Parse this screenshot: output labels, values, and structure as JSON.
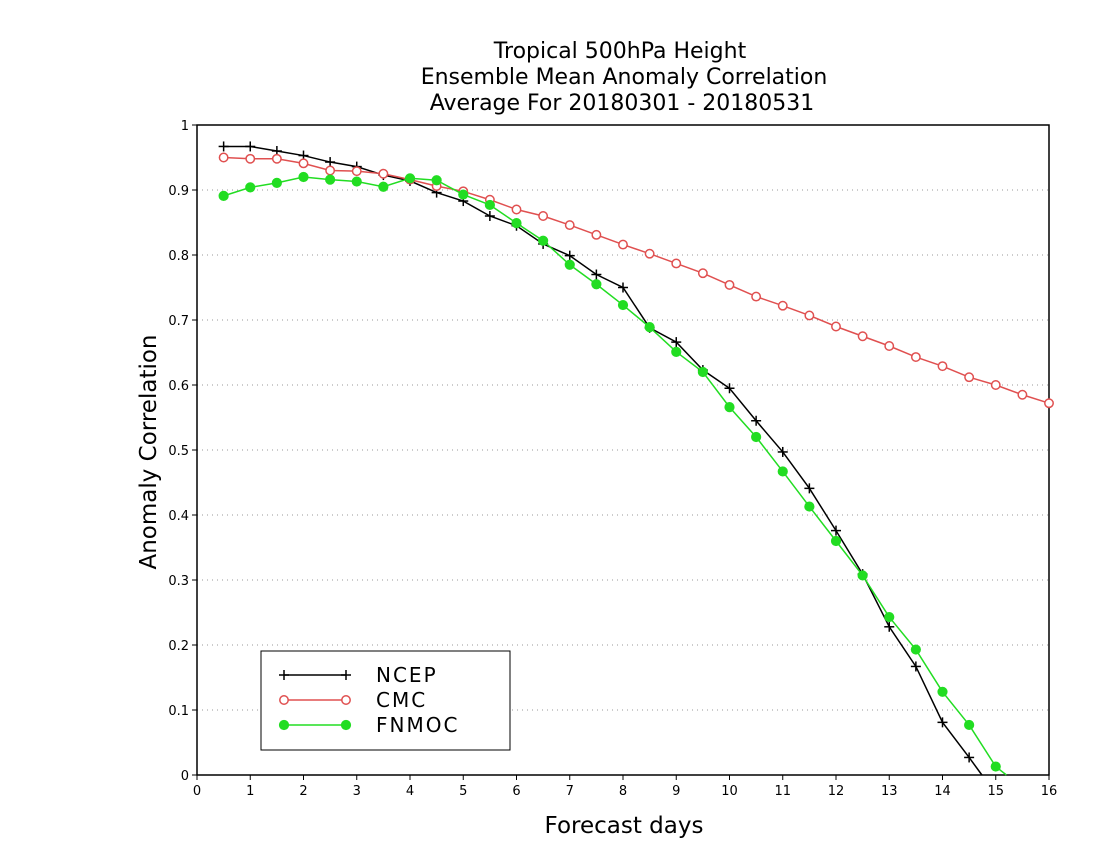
{
  "chart_data": {
    "type": "line",
    "title": [
      "Tropical 500hPa Height",
      "Ensemble Mean Anomaly Correlation",
      "Average For 20180301 - 20180531"
    ],
    "xlabel": "Forecast days",
    "ylabel": "Anomaly Correlation",
    "xlim": [
      0,
      16
    ],
    "ylim": [
      0,
      1
    ],
    "xticks": [
      0,
      1,
      2,
      3,
      4,
      5,
      6,
      7,
      8,
      9,
      10,
      11,
      12,
      13,
      14,
      15,
      16
    ],
    "yticks": [
      0,
      0.1,
      0.2,
      0.3,
      0.4,
      0.5,
      0.6,
      0.7,
      0.8,
      0.9,
      1
    ],
    "ytick_labels": [
      "0",
      "0.1",
      "0.2",
      "0.3",
      "0.4",
      "0.5",
      "0.6",
      "0.7",
      "0.8",
      "0.9",
      "1"
    ],
    "grid": "horizontal dotted",
    "legend_position": "bottom-left",
    "series": [
      {
        "name": "NCEP",
        "color": "#000000",
        "marker": "plus",
        "x": [
          0.5,
          1,
          1.5,
          2,
          2.5,
          3,
          3.5,
          4,
          4.5,
          5,
          5.5,
          6,
          6.5,
          7,
          7.5,
          8,
          8.5,
          9,
          9.5,
          10,
          10.5,
          11,
          11.5,
          12,
          12.5,
          13,
          13.5,
          14,
          14.5
        ],
        "y": [
          0.967,
          0.967,
          0.96,
          0.953,
          0.943,
          0.936,
          0.923,
          0.914,
          0.896,
          0.883,
          0.86,
          0.845,
          0.817,
          0.799,
          0.77,
          0.75,
          0.688,
          0.666,
          0.623,
          0.595,
          0.545,
          0.497,
          0.441,
          0.376,
          0.309,
          0.228,
          0.167,
          0.081,
          0.027
        ],
        "end": [
          14.74,
          0
        ]
      },
      {
        "name": "CMC",
        "color": "#e05050",
        "marker": "open-circle",
        "x": [
          0.5,
          1,
          1.5,
          2,
          2.5,
          3,
          3.5,
          4,
          4.5,
          5,
          5.5,
          6,
          6.5,
          7,
          7.5,
          8,
          8.5,
          9,
          9.5,
          10,
          10.5,
          11,
          11.5,
          12,
          12.5,
          13,
          13.5,
          14,
          14.5,
          15,
          15.5,
          16
        ],
        "y": [
          0.95,
          0.948,
          0.948,
          0.941,
          0.93,
          0.929,
          0.925,
          0.916,
          0.906,
          0.898,
          0.885,
          0.87,
          0.86,
          0.846,
          0.831,
          0.816,
          0.802,
          0.787,
          0.772,
          0.754,
          0.736,
          0.722,
          0.707,
          0.69,
          0.675,
          0.66,
          0.643,
          0.629,
          0.612,
          0.6,
          0.585,
          0.572
        ]
      },
      {
        "name": "FNMOC",
        "color": "#22dd22",
        "marker": "filled-circle",
        "x": [
          0.5,
          1,
          1.5,
          2,
          2.5,
          3,
          3.5,
          4,
          4.5,
          5,
          5.5,
          6,
          6.5,
          7,
          7.5,
          8,
          8.5,
          9,
          9.5,
          10,
          10.5,
          11,
          11.5,
          12,
          12.5,
          13,
          13.5,
          14,
          14.5,
          15
        ],
        "y": [
          0.891,
          0.904,
          0.911,
          0.92,
          0.916,
          0.913,
          0.905,
          0.918,
          0.915,
          0.893,
          0.877,
          0.849,
          0.822,
          0.785,
          0.755,
          0.723,
          0.689,
          0.651,
          0.62,
          0.566,
          0.52,
          0.467,
          0.413,
          0.36,
          0.307,
          0.243,
          0.193,
          0.128,
          0.077,
          0.013
        ],
        "end": [
          15.2,
          0
        ]
      }
    ]
  }
}
